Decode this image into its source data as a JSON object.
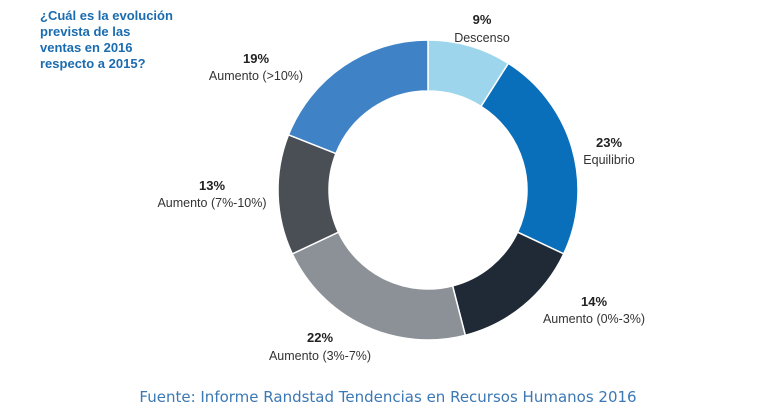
{
  "chart_data": {
    "type": "pie",
    "title_lines": [
      "¿Cuál es la evolución",
      "prevista de las",
      "ventas en 2016",
      "respecto a 2015?"
    ],
    "slices": [
      {
        "label": "Descenso",
        "value": 9,
        "value_label": "9%",
        "color": "#9dd6ec"
      },
      {
        "label": "Equilibrio",
        "value": 23,
        "value_label": "23%",
        "color": "#0a6fba"
      },
      {
        "label": "Aumento (0%-3%)",
        "value": 14,
        "value_label": "14%",
        "color": "#1f2a36"
      },
      {
        "label": "Aumento (3%-7%)",
        "value": 22,
        "value_label": "22%",
        "color": "#8c9097"
      },
      {
        "label": "Aumento (7%-10%)",
        "value": 13,
        "value_label": "13%",
        "color": "#4a4e55"
      },
      {
        "label": "Aumento (>10%)",
        "value": 19,
        "value_label": "19%",
        "color": "#3f83c6"
      }
    ],
    "donut": true,
    "start": "top",
    "direction": "clockwise"
  },
  "source": "Fuente: Informe Randstad Tendencias en Recursos Humanos 2016",
  "colors": {
    "title": "#1a6cb0",
    "source": "#3c78b4"
  }
}
